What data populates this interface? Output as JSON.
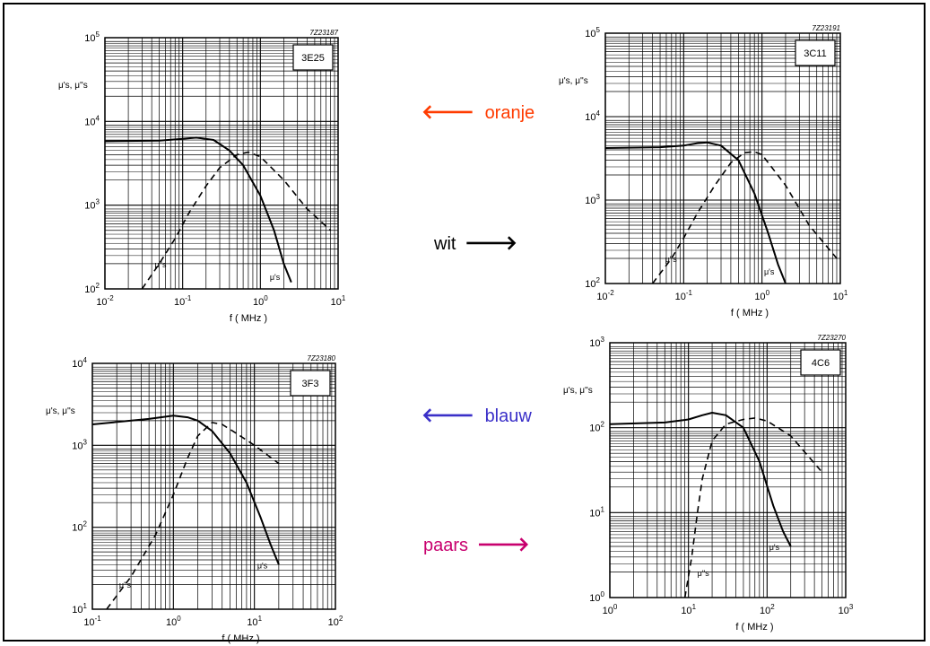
{
  "labels": {
    "oranje": {
      "text": "oranje",
      "arrow": "🡐",
      "color": "#ff3b00"
    },
    "wit": {
      "text": "wit",
      "arrow": "🡒",
      "color": "#000000"
    },
    "blauw": {
      "text": "blauw",
      "arrow": "🡐",
      "color": "#3a2fc8"
    },
    "paars": {
      "text": "paars",
      "arrow": "🡒",
      "color": "#c8006e"
    }
  },
  "chart_data": [
    {
      "type": "line",
      "code": "7Z23187",
      "title": "3E25",
      "ylabel": "μ's, μ''s",
      "xlabel": "f  ( MHz )",
      "xscale": "log",
      "yscale": "log",
      "xlim": [
        0.01,
        10
      ],
      "ylim": [
        100,
        100000
      ],
      "xticks": [
        "10-2",
        "10-1",
        "100",
        "101"
      ],
      "yticks": [
        "102",
        "103",
        "104",
        "105"
      ],
      "series": [
        {
          "name": "μ's",
          "style": "solid",
          "x": [
            0.01,
            0.05,
            0.1,
            0.15,
            0.25,
            0.4,
            0.6,
            1.0,
            1.5,
            2.0,
            2.5
          ],
          "y": [
            5800,
            5900,
            6200,
            6400,
            6000,
            4500,
            3000,
            1300,
            500,
            200,
            120
          ]
        },
        {
          "name": "μ''s",
          "style": "dashed",
          "x": [
            0.03,
            0.05,
            0.08,
            0.12,
            0.2,
            0.3,
            0.5,
            0.7,
            1.0,
            2.0,
            4.0,
            8.0
          ],
          "y": [
            100,
            200,
            400,
            800,
            1700,
            2800,
            4000,
            4300,
            3800,
            2000,
            900,
            500
          ]
        }
      ]
    },
    {
      "type": "line",
      "code": "7Z23191",
      "title": "3C11",
      "ylabel": "μ's, μ''s",
      "xlabel": "f  ( MHz )",
      "xscale": "log",
      "yscale": "log",
      "xlim": [
        0.01,
        10
      ],
      "ylim": [
        100,
        100000
      ],
      "xticks": [
        "10-2",
        "10-1",
        "100",
        "101"
      ],
      "yticks": [
        "102",
        "103",
        "104",
        "105"
      ],
      "series": [
        {
          "name": "μ's",
          "style": "solid",
          "x": [
            0.01,
            0.05,
            0.1,
            0.15,
            0.2,
            0.3,
            0.5,
            0.8,
            1.2,
            1.6,
            2.0
          ],
          "y": [
            4200,
            4300,
            4500,
            4800,
            4900,
            4500,
            3000,
            1200,
            400,
            170,
            100
          ]
        },
        {
          "name": "μ''s",
          "style": "dashed",
          "x": [
            0.04,
            0.07,
            0.1,
            0.15,
            0.25,
            0.4,
            0.6,
            0.8,
            1.0,
            2.0,
            4.0,
            9.0
          ],
          "y": [
            100,
            200,
            350,
            700,
            1500,
            2800,
            3700,
            3800,
            3500,
            1500,
            500,
            200
          ]
        }
      ]
    },
    {
      "type": "line",
      "code": "7Z23180",
      "title": "3F3",
      "ylabel": "μ's, μ''s",
      "xlabel": "f  ( MHz )",
      "xscale": "log",
      "yscale": "log",
      "xlim": [
        0.1,
        100
      ],
      "ylim": [
        10,
        10000
      ],
      "xticks": [
        "10-1",
        "100",
        "101",
        "102"
      ],
      "yticks": [
        "101",
        "102",
        "103",
        "104"
      ],
      "series": [
        {
          "name": "μ's",
          "style": "solid",
          "x": [
            0.1,
            0.5,
            1.0,
            1.5,
            2.0,
            3.0,
            5.0,
            8.0,
            12.0,
            16.0,
            20.0
          ],
          "y": [
            1800,
            2100,
            2300,
            2200,
            2000,
            1500,
            800,
            350,
            130,
            60,
            35
          ]
        },
        {
          "name": "μ''s",
          "style": "dashed",
          "x": [
            0.15,
            0.3,
            0.6,
            1.0,
            1.5,
            2.0,
            3.0,
            4.0,
            6.0,
            10.0,
            20.0
          ],
          "y": [
            10,
            25,
            80,
            250,
            700,
            1300,
            1900,
            1800,
            1400,
            1000,
            600
          ]
        }
      ]
    },
    {
      "type": "line",
      "code": "7Z23270",
      "title": "4C6",
      "ylabel": "μ's, μ''s",
      "xlabel": "f  ( MHz )",
      "xscale": "log",
      "yscale": "log",
      "xlim": [
        1,
        1000
      ],
      "ylim": [
        1,
        1000
      ],
      "xticks": [
        "100",
        "101",
        "102",
        "103"
      ],
      "yticks": [
        "100",
        "101",
        "102",
        "103"
      ],
      "series": [
        {
          "name": "μ's",
          "style": "solid",
          "x": [
            1,
            5,
            10,
            15,
            20,
            30,
            50,
            80,
            120,
            160,
            200
          ],
          "y": [
            110,
            115,
            125,
            140,
            150,
            140,
            100,
            40,
            12,
            6,
            4
          ]
        },
        {
          "name": "μ''s",
          "style": "dashed",
          "x": [
            9,
            11,
            13,
            15,
            20,
            30,
            50,
            70,
            100,
            200,
            500
          ],
          "y": [
            1,
            3,
            10,
            25,
            70,
            110,
            125,
            130,
            120,
            80,
            30
          ]
        }
      ]
    }
  ]
}
